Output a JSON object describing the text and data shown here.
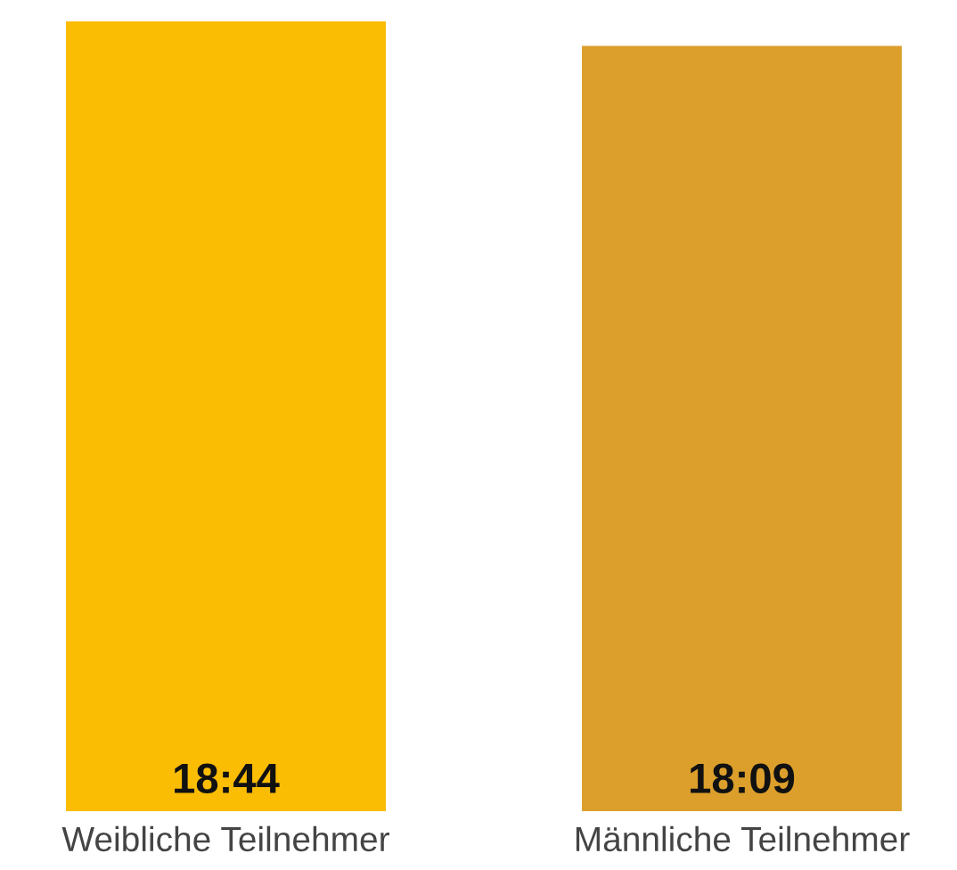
{
  "chart_data": {
    "type": "bar",
    "categories": [
      "Weibliche Teilnehmer",
      "Männliche Teilnehmer"
    ],
    "values": [
      18.7333,
      18.15
    ],
    "colors": [
      "#fbbc04",
      "#dc9f2b"
    ],
    "value_labels": [
      "18:44",
      "18:09"
    ],
    "grid": false,
    "legend": false
  }
}
